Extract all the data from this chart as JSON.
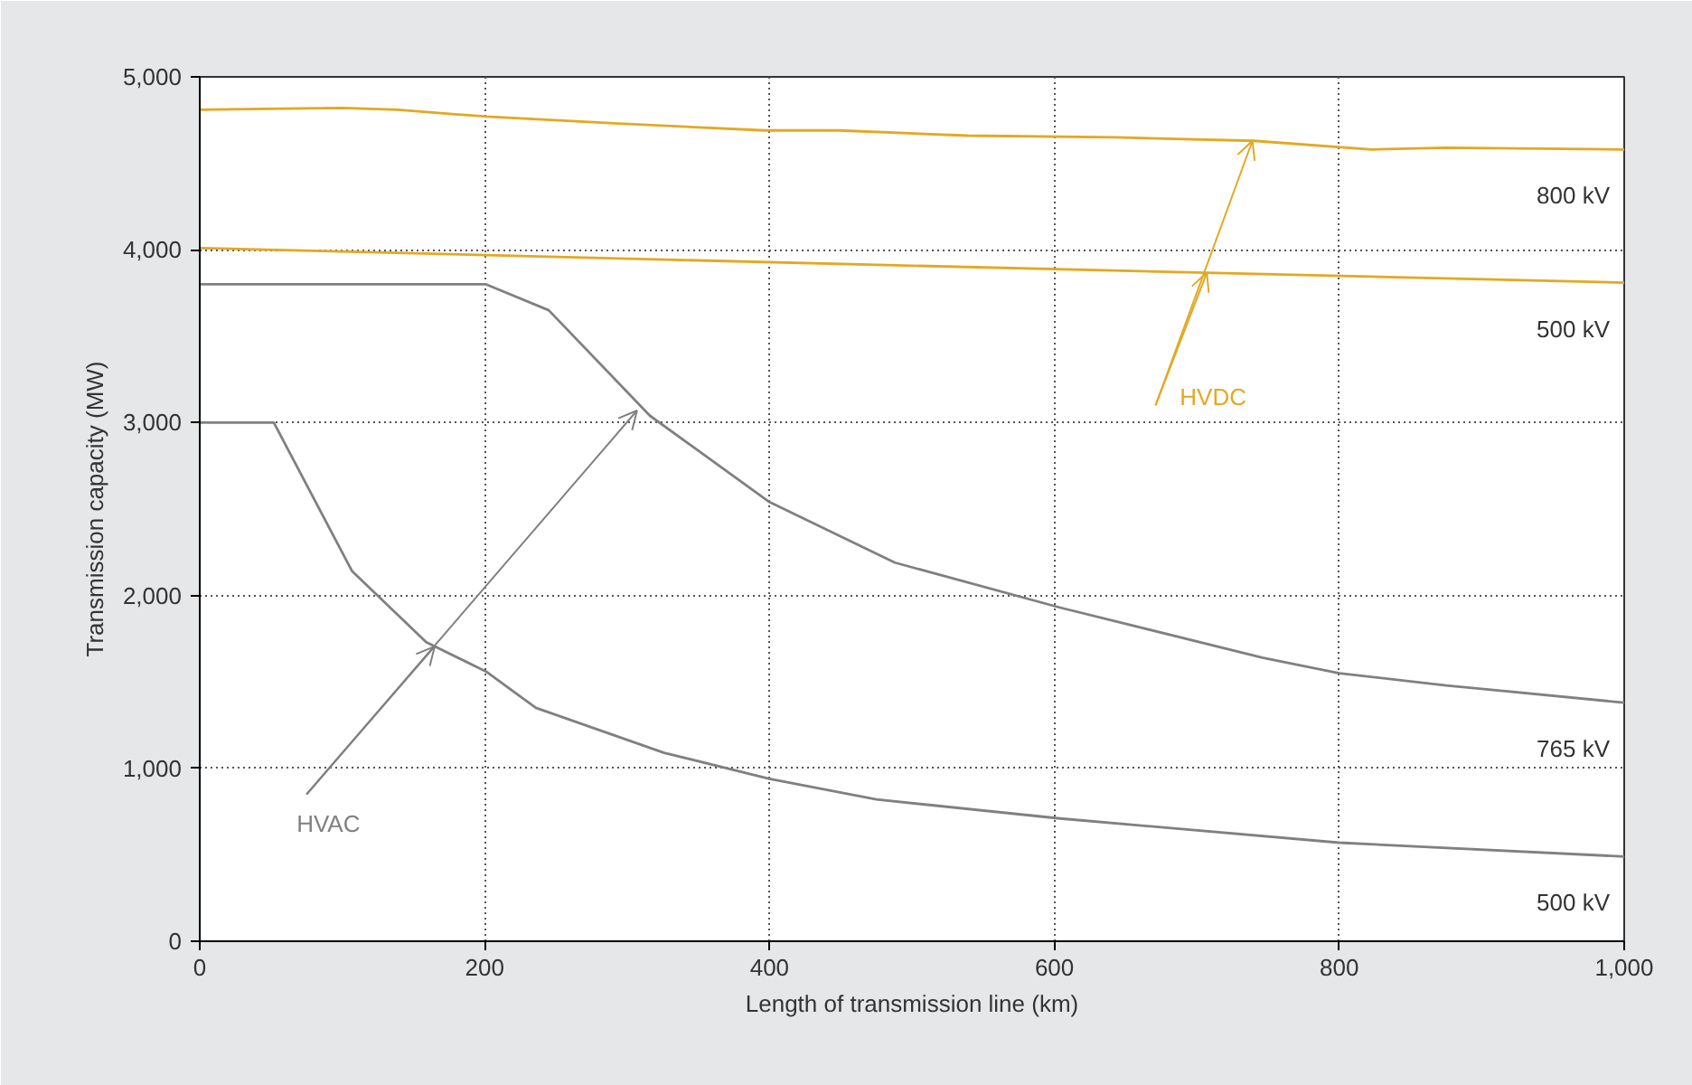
{
  "chart_data": {
    "type": "line",
    "xlabel": "Length of transmission line (km)",
    "ylabel": "Transmission capacity (MW)",
    "xlim": [
      0,
      1000
    ],
    "ylim": [
      0,
      5000
    ],
    "xticks": [
      0,
      200,
      400,
      600,
      800,
      {
        "value": 1000,
        "label": "1,000"
      }
    ],
    "yticks": [
      0,
      {
        "value": 1000,
        "label": "1,000"
      },
      {
        "value": 2000,
        "label": "2,000"
      },
      {
        "value": 3000,
        "label": "3,000"
      },
      {
        "value": 4000,
        "label": "4,000"
      },
      {
        "value": 5000,
        "label": "5,000"
      }
    ],
    "grid": true,
    "line_style": "solid",
    "marker": "none",
    "series": [
      {
        "name": "800 kV",
        "color": "#e3a823",
        "x": [
          0,
          100,
          139,
          201,
          294,
          397,
          449,
          539,
          643,
          740,
          823,
          875,
          1000
        ],
        "values": [
          4810,
          4820,
          4810,
          4770,
          4730,
          4690,
          4690,
          4660,
          4650,
          4630,
          4580,
          4590,
          4580
        ]
      },
      {
        "name": "500 kV",
        "color": "#e3a823",
        "x": [
          0,
          488,
          1000
        ],
        "values": [
          4010,
          3910,
          3810
        ]
      },
      {
        "name": "765 kV",
        "color": "#808080",
        "x": [
          0,
          201,
          245,
          316,
          400,
          488,
          604,
          746,
          800,
          875,
          1000
        ],
        "values": [
          3800,
          3800,
          3650,
          3040,
          2540,
          2190,
          1930,
          1640,
          1550,
          1480,
          1380
        ]
      },
      {
        "name": "500 kV",
        "color": "#808080",
        "x": [
          0,
          52,
          107,
          159,
          201,
          236,
          326,
          400,
          475,
          604,
          800,
          1000
        ],
        "values": [
          3000,
          3000,
          2140,
          1730,
          1560,
          1350,
          1090,
          940,
          820,
          710,
          570,
          490
        ]
      }
    ],
    "annotations": [
      {
        "text": "HVDC",
        "x": 739,
        "y": 4630
      },
      {
        "text": "HVAC",
        "x": 307,
        "y": 3070
      }
    ]
  }
}
